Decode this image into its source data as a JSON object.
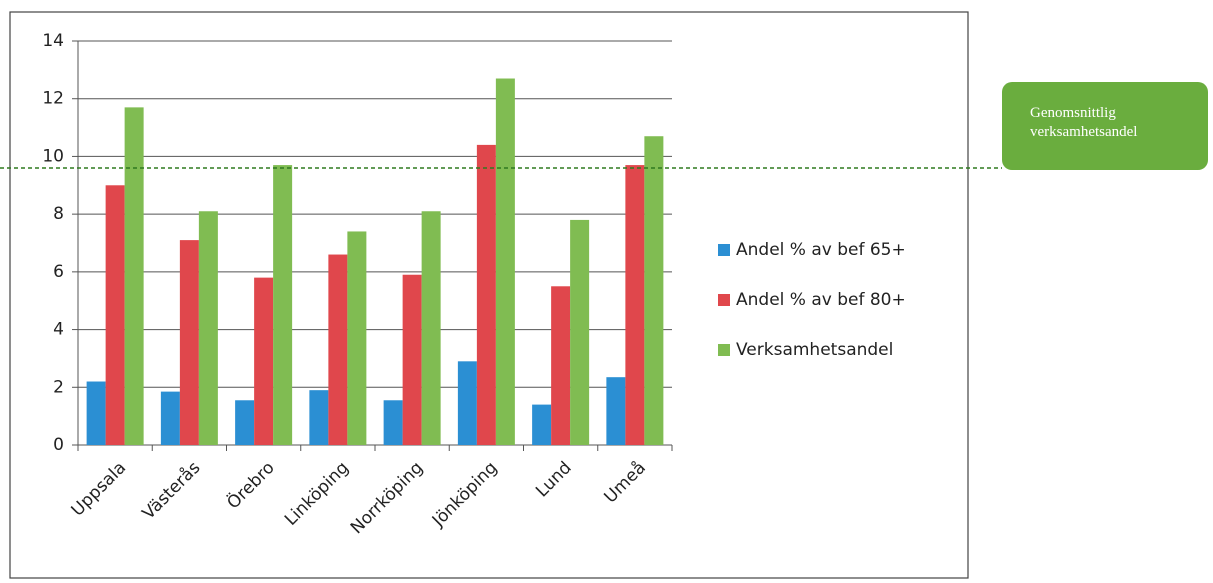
{
  "chart_data": {
    "type": "bar",
    "categories": [
      "Uppsala",
      "Västerås",
      "Örebro",
      "Linköping",
      "Norrköping",
      "Jönköping",
      "Lund",
      "Umeå"
    ],
    "series": [
      {
        "name": "Andel % av bef 65+",
        "color": "#2b8fd3",
        "values": [
          2.2,
          1.85,
          1.55,
          1.9,
          1.55,
          2.9,
          1.4,
          2.35
        ]
      },
      {
        "name": "Andel % av bef 80+",
        "color": "#e0474c",
        "values": [
          9.0,
          7.1,
          5.8,
          6.6,
          5.9,
          10.4,
          5.5,
          9.7
        ]
      },
      {
        "name": "Verksamhetsandel",
        "color": "#80bc52",
        "values": [
          11.7,
          8.1,
          9.7,
          7.4,
          8.1,
          12.7,
          7.8,
          10.7
        ]
      }
    ],
    "ylim": [
      0,
      14
    ],
    "yticks": [
      0,
      2,
      4,
      6,
      8,
      10,
      12,
      14
    ],
    "grid": true,
    "legend": "right",
    "reference_line": {
      "value": 9.6,
      "color": "#2f7a1f",
      "label": "Genomsnittlig verksamhetsandel",
      "label_color": "#6aad3e"
    }
  }
}
